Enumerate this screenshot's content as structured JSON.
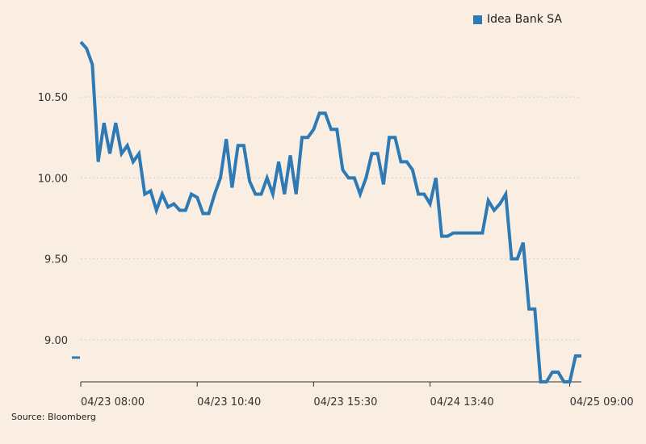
{
  "colors": {
    "background": "#FAEEE2",
    "series_line": "#2E7AB5",
    "gridline": "#D8CFC4",
    "axis": "#333333"
  },
  "source": "Source: Bloomberg",
  "chart_data": {
    "type": "line",
    "title": "",
    "xlabel": "",
    "ylabel": "",
    "grid": true,
    "legend_position": "top-right",
    "ylim": [
      8.74,
      10.9
    ],
    "yticks": [
      9.0,
      9.5,
      10.0,
      10.5
    ],
    "ytick_labels": [
      "9.00",
      "9.50",
      "10.00",
      "10.50"
    ],
    "xticks": [
      {
        "index": 0,
        "label": "04/23 08:00"
      },
      {
        "index": 20,
        "label": "04/23 10:40"
      },
      {
        "index": 40,
        "label": "04/23 15:30"
      },
      {
        "index": 60,
        "label": "04/24 13:40"
      },
      {
        "index": 84,
        "label": "04/25 09:00"
      }
    ],
    "prior_close": 8.89,
    "series": [
      {
        "name": "Idea Bank SA",
        "values": [
          10.84,
          10.8,
          10.7,
          10.1,
          10.34,
          10.15,
          10.34,
          10.15,
          10.2,
          10.1,
          10.15,
          9.9,
          9.92,
          9.8,
          9.9,
          9.82,
          9.84,
          9.8,
          9.8,
          9.9,
          9.88,
          9.78,
          9.78,
          9.9,
          10.0,
          10.24,
          9.94,
          10.2,
          10.2,
          9.98,
          9.9,
          9.9,
          10.0,
          9.9,
          10.1,
          9.9,
          10.14,
          9.9,
          10.25,
          10.25,
          10.3,
          10.4,
          10.4,
          10.3,
          10.3,
          10.05,
          10.0,
          10.0,
          9.9,
          10.0,
          10.15,
          10.15,
          9.96,
          10.25,
          10.25,
          10.1,
          10.1,
          10.05,
          9.9,
          9.9,
          9.84,
          10.0,
          9.64,
          9.64,
          9.66,
          9.66,
          9.66,
          9.66,
          9.66,
          9.66,
          9.86,
          9.8,
          9.84,
          9.9,
          9.5,
          9.5,
          9.6,
          9.19,
          9.19,
          8.74,
          8.74,
          8.8,
          8.8,
          8.74,
          8.74,
          8.9,
          8.9
        ]
      }
    ]
  }
}
